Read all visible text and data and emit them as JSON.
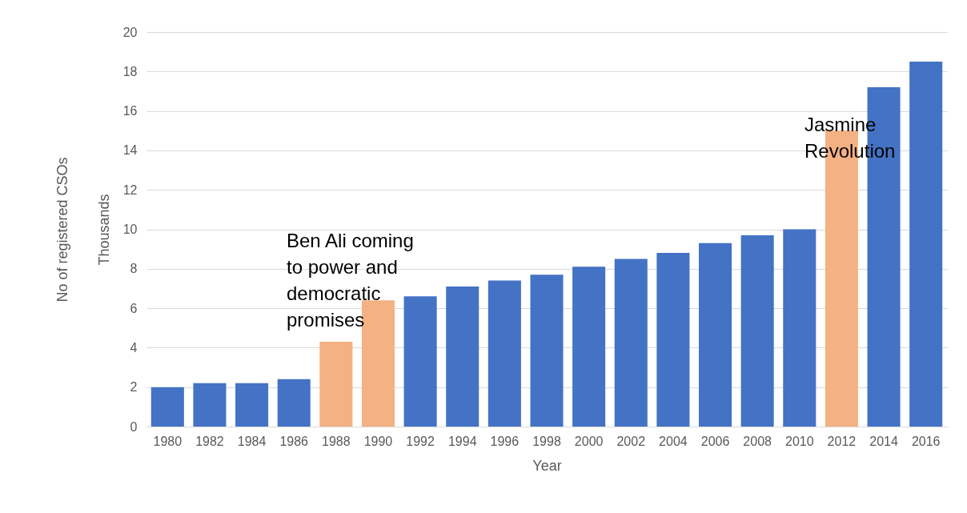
{
  "chart_data": {
    "type": "bar",
    "xlabel": "Year",
    "ylabel": "No of registered CSOs",
    "categories": [
      "1980",
      "1982",
      "1984",
      "1986",
      "1988",
      "1990",
      "1992",
      "1994",
      "1996",
      "1998",
      "2000",
      "2002",
      "2004",
      "2006",
      "2008",
      "2010",
      "2012",
      "2014",
      "2016"
    ],
    "values": [
      2.0,
      2.2,
      2.2,
      2.4,
      4.3,
      6.4,
      6.6,
      7.1,
      7.4,
      7.7,
      8.1,
      8.5,
      8.8,
      9.3,
      9.7,
      10.0,
      15.0,
      17.2,
      18.5
    ],
    "colors": [
      "#4472c4",
      "#4472c4",
      "#4472c4",
      "#4472c4",
      "#f4b183",
      "#f4b183",
      "#4472c4",
      "#4472c4",
      "#4472c4",
      "#4472c4",
      "#4472c4",
      "#4472c4",
      "#4472c4",
      "#4472c4",
      "#4472c4",
      "#4472c4",
      "#f4b183",
      "#4472c4",
      "#4472c4"
    ],
    "ylim": [
      0,
      20
    ],
    "yticks": [
      0,
      2,
      4,
      6,
      8,
      10,
      12,
      14,
      16,
      18,
      20
    ],
    "grid": "y",
    "annotations": [
      "Thousands",
      "Ben Ali coming to power and democratic promises",
      "Jasmine Revolution"
    ]
  }
}
